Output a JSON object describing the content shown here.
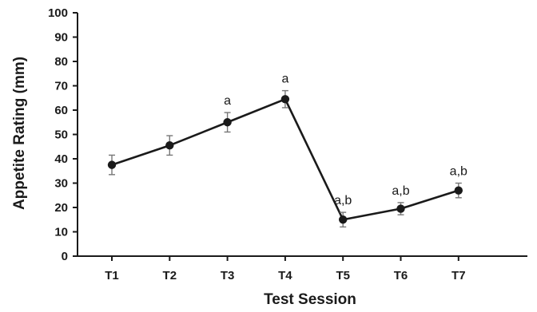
{
  "chart_data": {
    "type": "line",
    "title": "",
    "xlabel": "Test Session",
    "ylabel": "Appetite Rating (mm)",
    "ylim": [
      0,
      100
    ],
    "yticks": [
      0,
      10,
      20,
      30,
      40,
      50,
      60,
      70,
      80,
      90,
      100
    ],
    "grid": false,
    "legend": "none",
    "categories": [
      "T1",
      "T2",
      "T3",
      "T4",
      "T5",
      "T6",
      "T7"
    ],
    "series": [
      {
        "values": [
          37.5,
          45.5,
          55,
          64.5,
          15,
          19.5,
          27
        ],
        "error": [
          4,
          4,
          4,
          3.5,
          3,
          2.5,
          3
        ],
        "color": "#1a1a1a"
      }
    ],
    "annotations": [
      "",
      "",
      "a",
      "a",
      "a,b",
      "a,b",
      "a,b"
    ]
  }
}
